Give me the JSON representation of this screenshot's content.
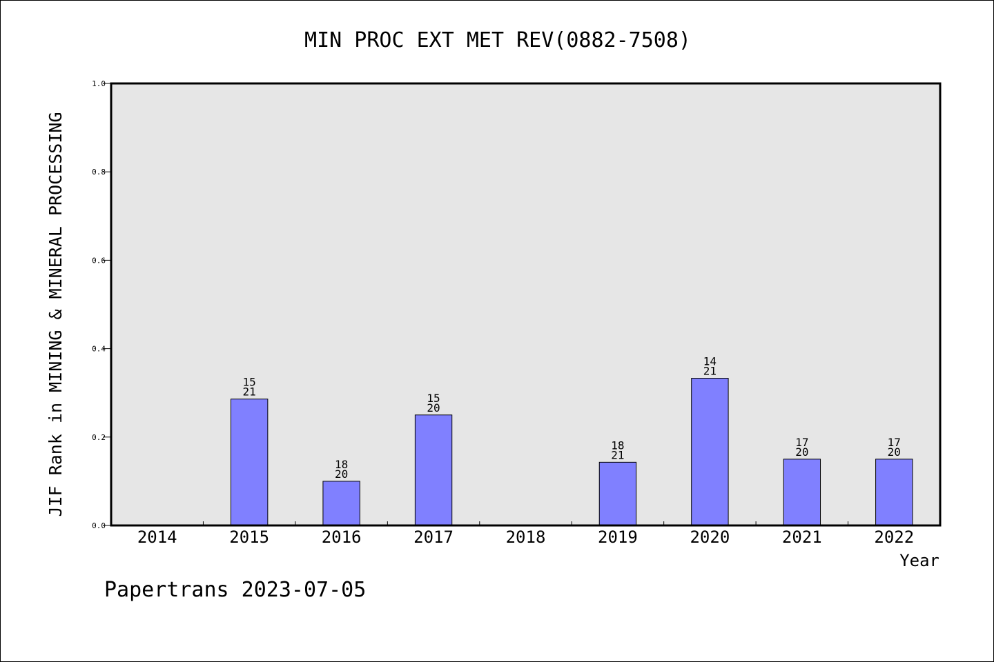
{
  "chart_data": {
    "type": "bar",
    "title": "MIN PROC EXT MET REV(0882-7508)",
    "xlabel": "Year",
    "ylabel": "JIF Rank in MINING & MINERAL PROCESSING",
    "ylim": [
      0,
      1.0
    ],
    "yticks": [
      "0.0",
      "0.2",
      "0.4",
      "0.6",
      "0.8",
      "1.0"
    ],
    "categories": [
      "2014",
      "2015",
      "2016",
      "2017",
      "2018",
      "2019",
      "2020",
      "2021",
      "2022"
    ],
    "values": [
      null,
      0.286,
      0.1,
      0.25,
      null,
      0.143,
      0.333,
      0.15,
      0.15
    ],
    "bar_labels": [
      null,
      {
        "rank": "15",
        "total": "21"
      },
      {
        "rank": "18",
        "total": "20"
      },
      {
        "rank": "15",
        "total": "20"
      },
      null,
      {
        "rank": "18",
        "total": "21"
      },
      {
        "rank": "14",
        "total": "21"
      },
      {
        "rank": "17",
        "total": "20"
      },
      {
        "rank": "17",
        "total": "20"
      }
    ],
    "bar_color": "#8080ff",
    "plot_background": "#e6e6e6",
    "grid": false,
    "legend": "none"
  },
  "footer": "Papertrans 2023-07-05"
}
